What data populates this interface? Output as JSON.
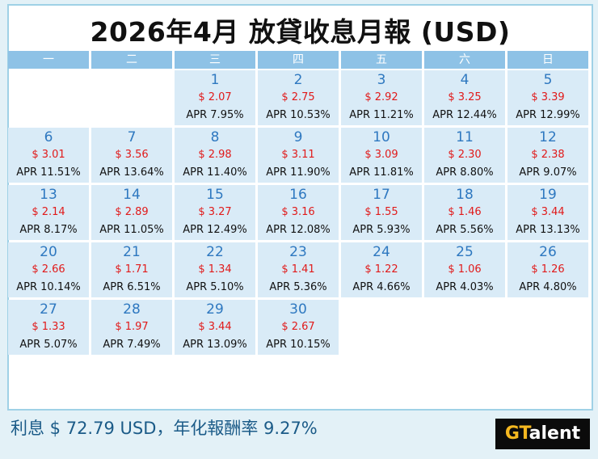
{
  "title": "2026年4月 放貸收息月報 (USD)",
  "weekdays": [
    "一",
    "二",
    "三",
    "四",
    "五",
    "六",
    "日"
  ],
  "days": [
    {
      "day": "1",
      "amount": "$ 2.07",
      "apr": "APR 7.95%"
    },
    {
      "day": "2",
      "amount": "$ 2.75",
      "apr": "APR 10.53%"
    },
    {
      "day": "3",
      "amount": "$ 2.92",
      "apr": "APR 11.21%"
    },
    {
      "day": "4",
      "amount": "$ 3.25",
      "apr": "APR 12.44%"
    },
    {
      "day": "5",
      "amount": "$ 3.39",
      "apr": "APR 12.99%"
    },
    {
      "day": "6",
      "amount": "$ 3.01",
      "apr": "APR 11.51%"
    },
    {
      "day": "7",
      "amount": "$ 3.56",
      "apr": "APR 13.64%"
    },
    {
      "day": "8",
      "amount": "$ 2.98",
      "apr": "APR 11.40%"
    },
    {
      "day": "9",
      "amount": "$ 3.11",
      "apr": "APR 11.90%"
    },
    {
      "day": "10",
      "amount": "$ 3.09",
      "apr": "APR 11.81%"
    },
    {
      "day": "11",
      "amount": "$ 2.30",
      "apr": "APR 8.80%"
    },
    {
      "day": "12",
      "amount": "$ 2.38",
      "apr": "APR 9.07%"
    },
    {
      "day": "13",
      "amount": "$ 2.14",
      "apr": "APR 8.17%"
    },
    {
      "day": "14",
      "amount": "$ 2.89",
      "apr": "APR 11.05%"
    },
    {
      "day": "15",
      "amount": "$ 3.27",
      "apr": "APR 12.49%"
    },
    {
      "day": "16",
      "amount": "$ 3.16",
      "apr": "APR 12.08%"
    },
    {
      "day": "17",
      "amount": "$ 1.55",
      "apr": "APR 5.93%"
    },
    {
      "day": "18",
      "amount": "$ 1.46",
      "apr": "APR 5.56%"
    },
    {
      "day": "19",
      "amount": "$ 3.44",
      "apr": "APR 13.13%"
    },
    {
      "day": "20",
      "amount": "$ 2.66",
      "apr": "APR 10.14%"
    },
    {
      "day": "21",
      "amount": "$ 1.71",
      "apr": "APR 6.51%"
    },
    {
      "day": "22",
      "amount": "$ 1.34",
      "apr": "APR 5.10%"
    },
    {
      "day": "23",
      "amount": "$ 1.41",
      "apr": "APR 5.36%"
    },
    {
      "day": "24",
      "amount": "$ 1.22",
      "apr": "APR 4.66%"
    },
    {
      "day": "25",
      "amount": "$ 1.06",
      "apr": "APR 4.03%"
    },
    {
      "day": "26",
      "amount": "$ 1.26",
      "apr": "APR 4.80%"
    },
    {
      "day": "27",
      "amount": "$ 1.33",
      "apr": "APR 5.07%"
    },
    {
      "day": "28",
      "amount": "$ 1.97",
      "apr": "APR 7.49%"
    },
    {
      "day": "29",
      "amount": "$ 3.44",
      "apr": "APR 13.09%"
    },
    {
      "day": "30",
      "amount": "$ 2.67",
      "apr": "APR 10.15%"
    }
  ],
  "summary": "利息 $ 72.79 USD，年化報酬率 9.27%",
  "logo": {
    "prefix": "GT",
    "suffix": "alent"
  },
  "colors": {
    "header": "#8ec2e6",
    "cell": "#d9ebf7",
    "amount": "#e11a1a",
    "day": "#2e78c0"
  }
}
